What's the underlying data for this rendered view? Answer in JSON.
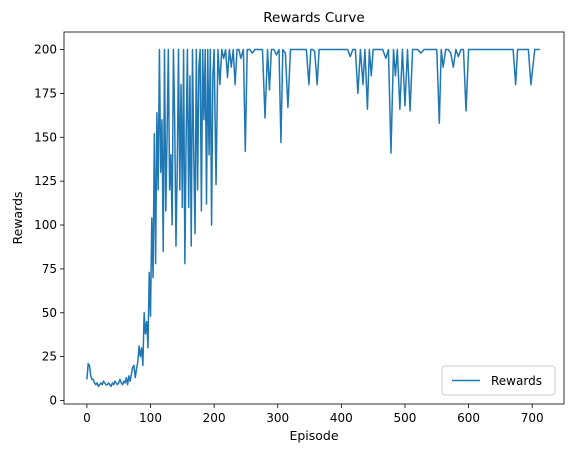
{
  "chart_data": {
    "type": "line",
    "title": "Rewards Curve",
    "xlabel": "Episode",
    "ylabel": "Rewards",
    "xlim": [
      -36,
      750
    ],
    "ylim": [
      -2,
      210
    ],
    "xticks": [
      0,
      100,
      200,
      300,
      400,
      500,
      600,
      700
    ],
    "yticks": [
      0,
      25,
      50,
      75,
      100,
      125,
      150,
      175,
      200
    ],
    "grid": false,
    "legend_position": "lower-right",
    "colors": {
      "series": "#1f77b4",
      "axes": "#000000",
      "legend_border": "#cccccc"
    },
    "series": [
      {
        "name": "Rewards",
        "points": [
          [
            0,
            12
          ],
          [
            2,
            21
          ],
          [
            4,
            20
          ],
          [
            6,
            14
          ],
          [
            8,
            12
          ],
          [
            10,
            12
          ],
          [
            12,
            10
          ],
          [
            14,
            9
          ],
          [
            16,
            10
          ],
          [
            18,
            8
          ],
          [
            20,
            9
          ],
          [
            22,
            10
          ],
          [
            24,
            9
          ],
          [
            26,
            11
          ],
          [
            28,
            10
          ],
          [
            30,
            9
          ],
          [
            32,
            9
          ],
          [
            34,
            10
          ],
          [
            36,
            9
          ],
          [
            38,
            8
          ],
          [
            40,
            10
          ],
          [
            42,
            9
          ],
          [
            44,
            11
          ],
          [
            46,
            10
          ],
          [
            48,
            9
          ],
          [
            50,
            10
          ],
          [
            52,
            12
          ],
          [
            54,
            10
          ],
          [
            56,
            9
          ],
          [
            58,
            11
          ],
          [
            60,
            10
          ],
          [
            62,
            13
          ],
          [
            64,
            9
          ],
          [
            66,
            14
          ],
          [
            68,
            11
          ],
          [
            70,
            15
          ],
          [
            72,
            19
          ],
          [
            74,
            20
          ],
          [
            76,
            13
          ],
          [
            78,
            18
          ],
          [
            80,
            22
          ],
          [
            82,
            31
          ],
          [
            84,
            25
          ],
          [
            86,
            30
          ],
          [
            88,
            20
          ],
          [
            90,
            50
          ],
          [
            92,
            38
          ],
          [
            94,
            45
          ],
          [
            96,
            30
          ],
          [
            98,
            73
          ],
          [
            100,
            48
          ],
          [
            102,
            104
          ],
          [
            104,
            70
          ],
          [
            106,
            152
          ],
          [
            108,
            78
          ],
          [
            110,
            164
          ],
          [
            112,
            120
          ],
          [
            114,
            200
          ],
          [
            116,
            130
          ],
          [
            118,
            160
          ],
          [
            120,
            85
          ],
          [
            122,
            200
          ],
          [
            124,
            108
          ],
          [
            126,
            150
          ],
          [
            128,
            200
          ],
          [
            130,
            120
          ],
          [
            132,
            140
          ],
          [
            134,
            100
          ],
          [
            136,
            200
          ],
          [
            138,
            160
          ],
          [
            140,
            88
          ],
          [
            142,
            132
          ],
          [
            144,
            200
          ],
          [
            146,
            120
          ],
          [
            148,
            180
          ],
          [
            150,
            110
          ],
          [
            152,
            200
          ],
          [
            154,
            78
          ],
          [
            156,
            150
          ],
          [
            158,
            200
          ],
          [
            160,
            110
          ],
          [
            162,
            185
          ],
          [
            164,
            88
          ],
          [
            166,
            200
          ],
          [
            168,
            140
          ],
          [
            170,
            95
          ],
          [
            172,
            200
          ],
          [
            174,
            120
          ],
          [
            176,
            190
          ],
          [
            178,
            200
          ],
          [
            180,
            108
          ],
          [
            182,
            200
          ],
          [
            184,
            160
          ],
          [
            186,
            200
          ],
          [
            188,
            112
          ],
          [
            190,
            200
          ],
          [
            192,
            140
          ],
          [
            194,
            200
          ],
          [
            196,
            100
          ],
          [
            198,
            185
          ],
          [
            200,
            200
          ],
          [
            203,
            123
          ],
          [
            206,
            200
          ],
          [
            209,
            180
          ],
          [
            212,
            200
          ],
          [
            215,
            195
          ],
          [
            218,
            200
          ],
          [
            221,
            184
          ],
          [
            224,
            200
          ],
          [
            227,
            190
          ],
          [
            230,
            200
          ],
          [
            233,
            180
          ],
          [
            236,
            200
          ],
          [
            239,
            200
          ],
          [
            242,
            195
          ],
          [
            246,
            200
          ],
          [
            249,
            142
          ],
          [
            252,
            200
          ],
          [
            256,
            200
          ],
          [
            260,
            198
          ],
          [
            264,
            200
          ],
          [
            268,
            200
          ],
          [
            272,
            200
          ],
          [
            276,
            200
          ],
          [
            280,
            161
          ],
          [
            284,
            200
          ],
          [
            287,
            177
          ],
          [
            290,
            200
          ],
          [
            294,
            200
          ],
          [
            298,
            197
          ],
          [
            302,
            200
          ],
          [
            305,
            147
          ],
          [
            308,
            200
          ],
          [
            312,
            198
          ],
          [
            316,
            167
          ],
          [
            320,
            200
          ],
          [
            325,
            200
          ],
          [
            330,
            200
          ],
          [
            335,
            200
          ],
          [
            340,
            200
          ],
          [
            345,
            200
          ],
          [
            349,
            180
          ],
          [
            352,
            200
          ],
          [
            355,
            200
          ],
          [
            358,
            199
          ],
          [
            362,
            180
          ],
          [
            365,
            200
          ],
          [
            370,
            200
          ],
          [
            375,
            200
          ],
          [
            380,
            200
          ],
          [
            385,
            200
          ],
          [
            390,
            200
          ],
          [
            395,
            200
          ],
          [
            400,
            200
          ],
          [
            405,
            200
          ],
          [
            410,
            200
          ],
          [
            414,
            196
          ],
          [
            418,
            200
          ],
          [
            422,
            200
          ],
          [
            426,
            175
          ],
          [
            430,
            200
          ],
          [
            434,
            180
          ],
          [
            437,
            200
          ],
          [
            441,
            166
          ],
          [
            444,
            200
          ],
          [
            447,
            185
          ],
          [
            450,
            200
          ],
          [
            455,
            200
          ],
          [
            460,
            200
          ],
          [
            465,
            200
          ],
          [
            470,
            195
          ],
          [
            474,
            200
          ],
          [
            478,
            141
          ],
          [
            482,
            200
          ],
          [
            485,
            185
          ],
          [
            488,
            200
          ],
          [
            492,
            166
          ],
          [
            496,
            200
          ],
          [
            500,
            168
          ],
          [
            504,
            200
          ],
          [
            508,
            165
          ],
          [
            512,
            200
          ],
          [
            516,
            200
          ],
          [
            520,
            200
          ],
          [
            525,
            198
          ],
          [
            530,
            200
          ],
          [
            535,
            200
          ],
          [
            540,
            200
          ],
          [
            545,
            200
          ],
          [
            550,
            200
          ],
          [
            554,
            158
          ],
          [
            557,
            200
          ],
          [
            560,
            190
          ],
          [
            564,
            200
          ],
          [
            568,
            200
          ],
          [
            572,
            198
          ],
          [
            576,
            190
          ],
          [
            580,
            200
          ],
          [
            584,
            196
          ],
          [
            588,
            200
          ],
          [
            592,
            200
          ],
          [
            596,
            165
          ],
          [
            600,
            200
          ],
          [
            605,
            200
          ],
          [
            610,
            200
          ],
          [
            615,
            200
          ],
          [
            620,
            200
          ],
          [
            625,
            200
          ],
          [
            630,
            200
          ],
          [
            635,
            200
          ],
          [
            640,
            200
          ],
          [
            645,
            200
          ],
          [
            650,
            200
          ],
          [
            655,
            200
          ],
          [
            660,
            200
          ],
          [
            665,
            200
          ],
          [
            670,
            200
          ],
          [
            674,
            180
          ],
          [
            677,
            200
          ],
          [
            682,
            200
          ],
          [
            686,
            200
          ],
          [
            690,
            200
          ],
          [
            694,
            200
          ],
          [
            698,
            180
          ],
          [
            701,
            190
          ],
          [
            704,
            200
          ],
          [
            708,
            200
          ],
          [
            712,
            200
          ]
        ]
      }
    ]
  }
}
